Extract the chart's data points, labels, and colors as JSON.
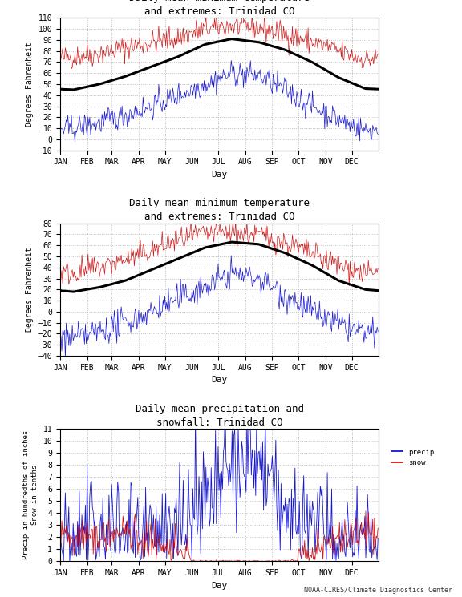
{
  "title1": "Daily mean maximum temperature\nand extremes: Trinidad CO",
  "title2": "Daily mean minimum temperature\nand extremes: Trinidad CO",
  "title3": "Daily mean precipitation and\nsnowfall: Trinidad CO",
  "ylabel1": "Degrees Fahrenheit",
  "ylabel2": "Degrees Fahrenheit",
  "ylabel3": "Precip in hundredths of inches\nSnow in tenths",
  "xlabel": "Day",
  "months": [
    "JAN",
    "FEB",
    "MAR",
    "APR",
    "MAY",
    "JUN",
    "JUL",
    "AUG",
    "SEP",
    "OCT",
    "NOV",
    "DEC"
  ],
  "max_mean_monthly": [
    45,
    50,
    57,
    66,
    75,
    86,
    91,
    88,
    81,
    70,
    56,
    46
  ],
  "max_extreme_high_monthly": [
    75,
    78,
    83,
    88,
    92,
    100,
    103,
    101,
    95,
    88,
    80,
    72
  ],
  "max_extreme_low_monthly": [
    10,
    15,
    22,
    30,
    40,
    50,
    60,
    58,
    45,
    30,
    18,
    8
  ],
  "min_mean_monthly": [
    18,
    22,
    28,
    38,
    48,
    58,
    63,
    61,
    53,
    42,
    28,
    20
  ],
  "min_extreme_high_monthly": [
    35,
    40,
    47,
    55,
    65,
    70,
    72,
    70,
    62,
    52,
    42,
    35
  ],
  "min_extreme_low_monthly": [
    -25,
    -18,
    -10,
    0,
    12,
    22,
    35,
    30,
    15,
    0,
    -12,
    -20
  ],
  "precip_monthly": [
    1.5,
    1.5,
    2.0,
    2.5,
    3.0,
    4.5,
    7.5,
    8.5,
    3.5,
    2.5,
    1.5,
    1.5
  ],
  "snow_monthly": [
    2.0,
    2.0,
    2.5,
    1.5,
    0.5,
    0.0,
    0.0,
    0.0,
    0.2,
    0.5,
    2.0,
    2.5
  ],
  "background_color": "#ffffff",
  "line_color_red": "#cc0000",
  "line_color_blue": "#0000cc",
  "line_color_black": "#000000",
  "grid_color": "#aaaaaa",
  "font_color": "#000000",
  "footer": "NOAA-CIRES/Climate Diagnostics Center"
}
